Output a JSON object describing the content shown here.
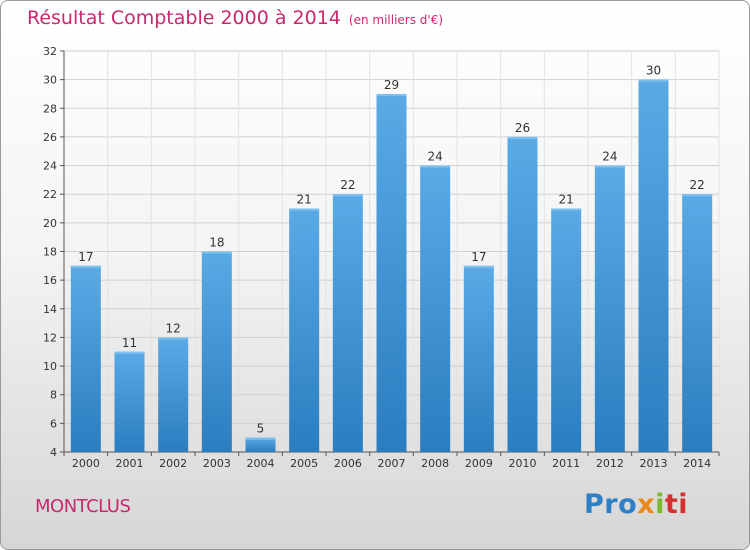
{
  "header": {
    "title": "Résultat Comptable 2000 à 2014",
    "subtitle": "(en milliers d'€)"
  },
  "footer": {
    "place": "MONTCLUS",
    "logo_parts": [
      "Pro",
      "x",
      "i",
      "ti"
    ]
  },
  "colors": {
    "title": "#c8286e",
    "bar_top": "#5aaae6",
    "bar_bottom": "#2a7dbf",
    "grid": "#d0d0d0"
  },
  "chart_data": {
    "type": "bar",
    "title": "Résultat Comptable 2000 à 2014",
    "subtitle": "(en milliers d'€)",
    "categories": [
      "2000",
      "2001",
      "2002",
      "2003",
      "2004",
      "2005",
      "2006",
      "2007",
      "2008",
      "2009",
      "2010",
      "2011",
      "2012",
      "2013",
      "2014"
    ],
    "values": [
      17,
      11,
      12,
      18,
      5,
      21,
      22,
      29,
      24,
      17,
      26,
      21,
      24,
      30,
      22
    ],
    "yticks": [
      4,
      6,
      8,
      10,
      12,
      14,
      16,
      18,
      20,
      22,
      24,
      26,
      28,
      30,
      32
    ],
    "ylim": [
      4,
      32
    ],
    "xlabel": "",
    "ylabel": "",
    "grid": true,
    "legend": "none"
  }
}
